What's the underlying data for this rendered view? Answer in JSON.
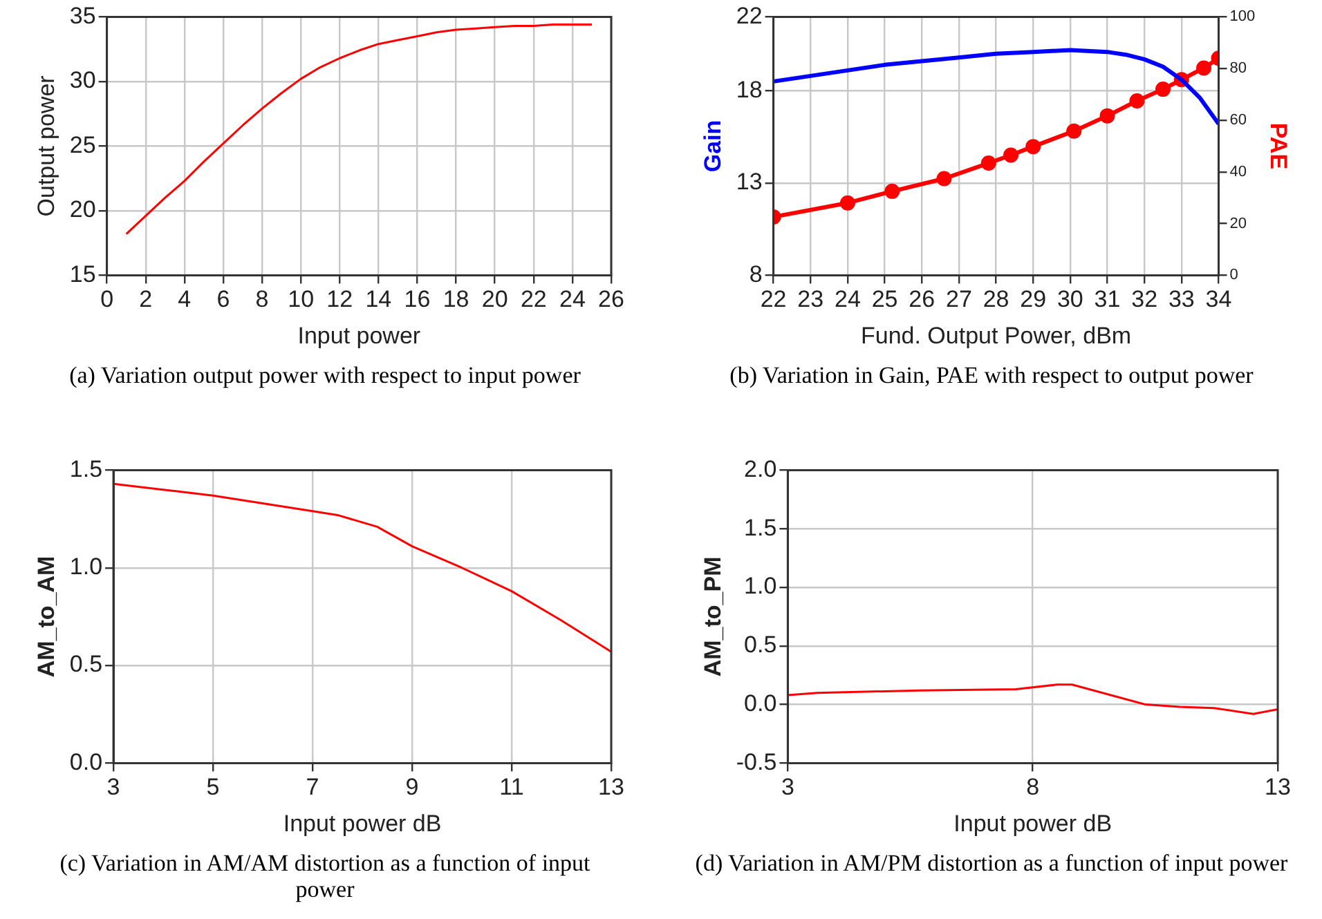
{
  "chart_data": [
    {
      "type": "line",
      "xlabel": "Input power",
      "ylabel": "Output power",
      "annotations": [
        "(a) Variation output power with respect to input power"
      ],
      "xlim": [
        0,
        26
      ],
      "xticks": [
        0,
        2,
        4,
        6,
        8,
        10,
        12,
        14,
        16,
        18,
        20,
        22,
        24,
        26
      ],
      "ylim": [
        15,
        35
      ],
      "yticks": [
        15,
        20,
        25,
        30,
        35
      ],
      "grid": true,
      "line_style": "solid",
      "x": [
        1,
        2,
        3,
        4,
        5,
        6,
        7,
        8,
        9,
        10,
        11,
        12,
        13,
        14,
        15,
        16,
        17,
        18,
        19,
        20,
        21,
        22,
        23,
        24,
        25
      ],
      "series": [
        {
          "color": "#ff0000",
          "values": [
            18.2,
            19.6,
            21.0,
            22.3,
            23.8,
            25.2,
            26.6,
            27.9,
            29.1,
            30.2,
            31.1,
            31.8,
            32.4,
            32.9,
            33.2,
            33.5,
            33.8,
            34.0,
            34.1,
            34.2,
            34.3,
            34.3,
            34.4,
            34.4,
            34.4
          ]
        }
      ]
    },
    {
      "type": "line",
      "xlabel": "Fund. Output Power, dBm",
      "ylabel": "Gain",
      "y2label": "PAE",
      "annotations": [
        "(b) Variation in Gain, PAE with respect to output power"
      ],
      "xlim": [
        22,
        34
      ],
      "xticks": [
        22,
        23,
        24,
        25,
        26,
        27,
        28,
        29,
        30,
        31,
        32,
        33,
        34
      ],
      "ylim": [
        8,
        22
      ],
      "yticks": [
        8,
        13,
        18,
        22
      ],
      "y2lim": [
        0,
        100
      ],
      "y2ticks": [
        0,
        20,
        40,
        60,
        80,
        100
      ],
      "grid": true,
      "line_style": "solid",
      "series": [
        {
          "color": "#0000ff",
          "x": [
            22,
            23,
            24,
            25,
            26,
            27,
            28,
            29,
            30,
            31,
            31.5,
            32,
            32.5,
            33,
            33.5,
            34
          ],
          "values": [
            18.5,
            18.8,
            19.1,
            19.4,
            19.6,
            19.8,
            20.0,
            20.1,
            20.2,
            20.1,
            19.95,
            19.7,
            19.3,
            18.6,
            17.6,
            16.2
          ]
        },
        {
          "color": "#ff0000",
          "axis": "y2",
          "marker": "circle",
          "x": [
            22,
            24,
            25.2,
            26.6,
            27.8,
            28.4,
            29,
            30.1,
            31,
            31.8,
            32.5,
            33,
            33.6,
            34
          ],
          "values": [
            22.6,
            28,
            32.5,
            37.4,
            43.4,
            46.5,
            49.8,
            55.8,
            61.7,
            67.5,
            72,
            75.7,
            80.2,
            84
          ]
        }
      ]
    },
    {
      "type": "line",
      "xlabel": "Input power dB",
      "ylabel": "AM_to_AM",
      "annotations": [
        "(c) Variation in AM/AM distortion as a function of input power"
      ],
      "xlim": [
        3,
        13
      ],
      "xticks": [
        3,
        5,
        7,
        9,
        11,
        13
      ],
      "ylim": [
        0,
        1.5
      ],
      "yticks": [
        {
          "value": 0,
          "label": "0.0"
        },
        0.5,
        {
          "value": 1,
          "label": "1.0"
        },
        1.5
      ],
      "grid": true,
      "line_style": "solid",
      "x": [
        3,
        4,
        5,
        6,
        7,
        7.5,
        8.3,
        9,
        10,
        10.5,
        11,
        12,
        13
      ],
      "series": [
        {
          "color": "#ff0000",
          "values": [
            1.43,
            1.4,
            1.37,
            1.33,
            1.29,
            1.27,
            1.21,
            1.11,
            1.0,
            0.94,
            0.88,
            0.73,
            0.57
          ]
        }
      ]
    },
    {
      "type": "line",
      "xlabel": "Input power dB",
      "ylabel": "AM_to_PM",
      "annotations": [
        "(d) Variation in AM/PM distortion as a function of input power"
      ],
      "xlim": [
        3,
        13
      ],
      "xticks": [
        3,
        8,
        13
      ],
      "ylim": [
        -0.5,
        2
      ],
      "yticks": [
        -0.5,
        {
          "value": 0,
          "label": "0.0"
        },
        0.5,
        {
          "value": 1,
          "label": "1.0"
        },
        1.5,
        {
          "value": 2,
          "label": "2.0"
        }
      ],
      "grid": true,
      "line_style": "solid",
      "x": [
        3,
        3.6,
        5.7,
        7.65,
        8.5,
        8.8,
        10.3,
        11,
        11.7,
        12.5,
        13
      ],
      "series": [
        {
          "color": "#ff0000",
          "values": [
            0.08,
            0.1,
            0.12,
            0.13,
            0.17,
            0.17,
            0.0,
            -0.02,
            -0.03,
            -0.08,
            -0.04
          ]
        }
      ]
    }
  ]
}
